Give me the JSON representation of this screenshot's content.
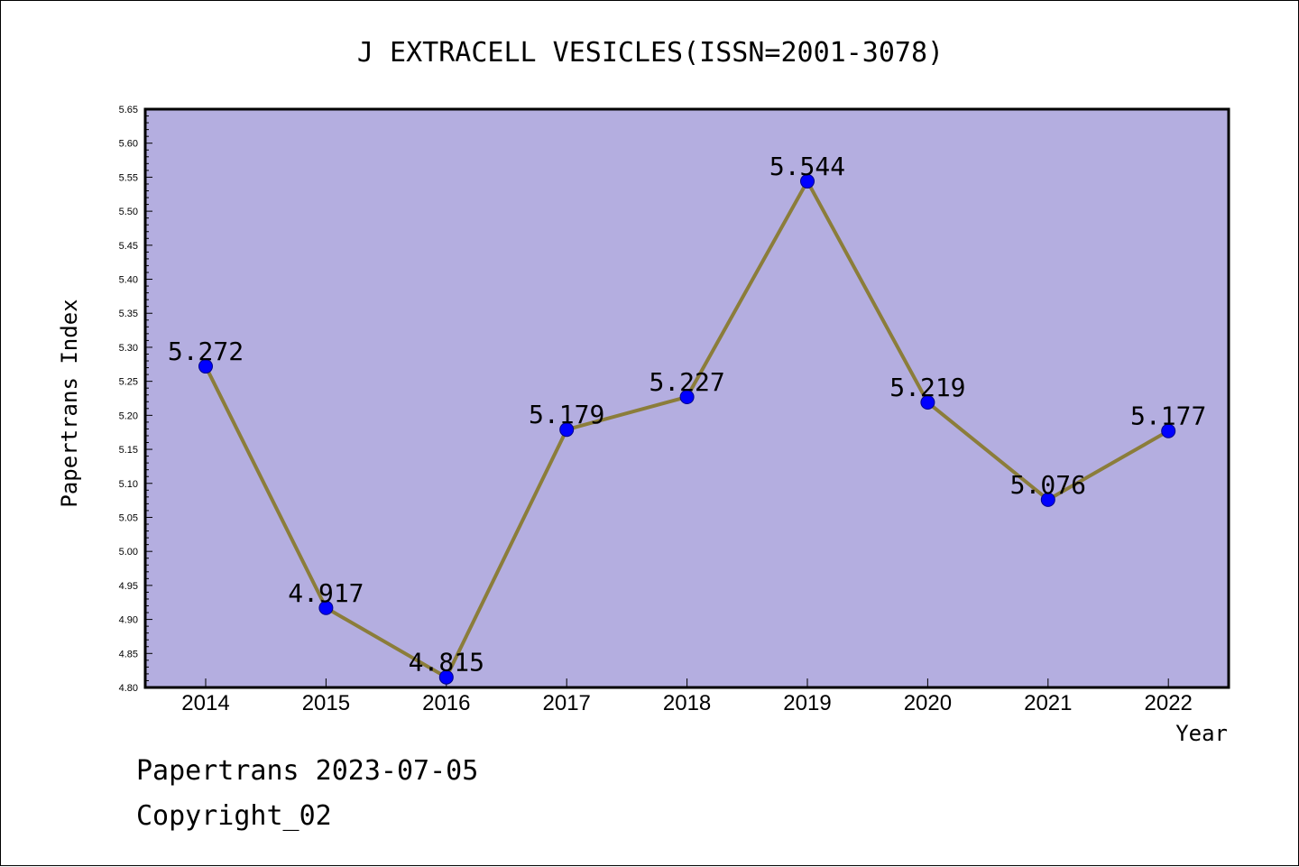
{
  "chart_data": {
    "type": "line",
    "title": "J EXTRACELL VESICLES(ISSN=2001-3078)",
    "xlabel": "Year",
    "ylabel": "Papertrans Index",
    "categories": [
      "2014",
      "2015",
      "2016",
      "2017",
      "2018",
      "2019",
      "2020",
      "2021",
      "2022"
    ],
    "values": [
      5.272,
      4.917,
      4.815,
      5.179,
      5.227,
      5.544,
      5.219,
      5.076,
      5.177
    ],
    "data_labels": [
      "5.272",
      "4.917",
      "4.815",
      "5.179",
      "5.227",
      "5.544",
      "5.219",
      "5.076",
      "5.177"
    ],
    "ylim": [
      4.8,
      5.65
    ],
    "yticks": [
      "4.80",
      "4.85",
      "4.90",
      "4.95",
      "5.00",
      "5.05",
      "5.10",
      "5.15",
      "5.20",
      "5.25",
      "5.30",
      "5.35",
      "5.40",
      "5.45",
      "5.50",
      "5.55",
      "5.60",
      "5.65"
    ],
    "grid": false,
    "colors": {
      "plot_background": "#b4aee0",
      "line": "#8b7d3a",
      "marker": "#0000ff"
    }
  },
  "footer": {
    "line1": "Papertrans 2023-07-05",
    "line2": "Copyright_02"
  }
}
